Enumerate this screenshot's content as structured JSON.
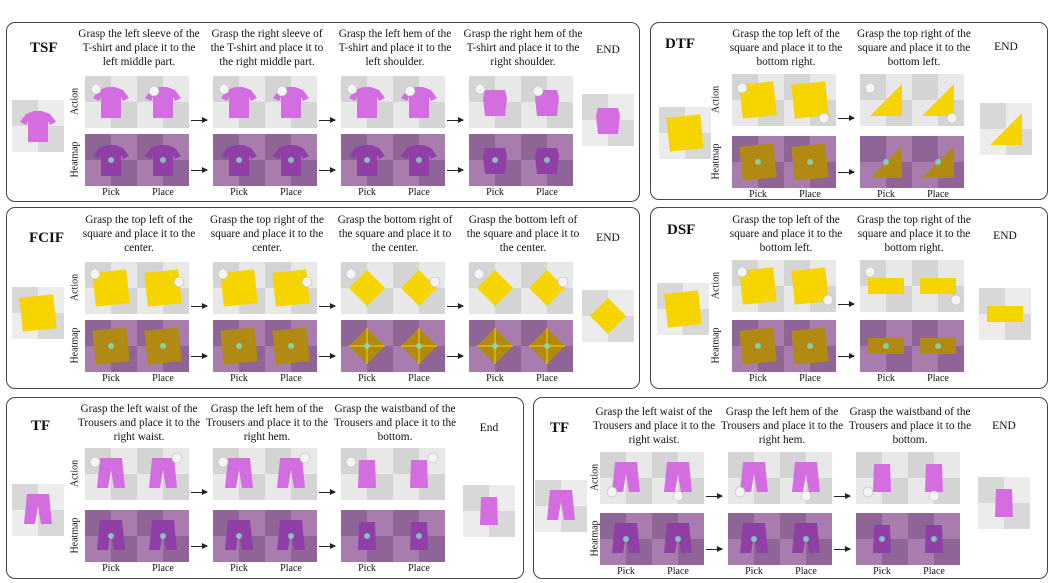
{
  "colors": {
    "cloth_pink": "#d46ee0",
    "cloth_yellow": "#f6d400",
    "heat_cloth": "#8f3fa6",
    "heat_yellow": "#b08a12",
    "panel_border": "#444444"
  },
  "panels": {
    "tsf": {
      "title": "TSF",
      "steps": [
        "Grasp the left sleeve of the T-shirt and place it to the left middle part.",
        "Grasp the right sleeve of the T-shirt and place it to the right middle part.",
        "Grasp the left hem of the T-shirt and place it to the left shoulder.",
        "Grasp the right hem of the T-shirt and place it to the right shoulder."
      ],
      "end": "END"
    },
    "dtf": {
      "title": "DTF",
      "steps": [
        "Grasp the top left of the square and place it to the bottom right.",
        "Grasp the top right of the square and place it to the bottom left."
      ],
      "end": "END"
    },
    "fcif": {
      "title": "FCIF",
      "steps": [
        "Grasp the top left of the square and place it to the center.",
        "Grasp the top right of the square and place it to the center.",
        "Grasp the bottom right of the square and place it to the center.",
        "Grasp the bottom left of the square and place it to the center."
      ],
      "end": "END"
    },
    "dsf": {
      "title": "DSF",
      "steps": [
        "Grasp the top left of the square and place it to the bottom left.",
        "Grasp the top right of the square and place it to the bottom right."
      ],
      "end": "END"
    },
    "tf1": {
      "title": "TF",
      "steps": [
        "Grasp the left waist of the Trousers and place it to the right waist.",
        "Grasp the left hem of the Trousers and place it to the right hem.",
        "Grasp the waistband of the Trousers and place it to the bottom."
      ],
      "end": "End"
    },
    "tf2": {
      "title": "TF",
      "steps": [
        "Grasp the left waist of the Trousers and place it to the right waist.",
        "Grasp the left hem of the Trousers and place it to the right hem.",
        "Grasp the waistband of the Trousers and place it to the bottom."
      ],
      "end": "END"
    }
  },
  "labels": {
    "action": "Action",
    "heatmap": "Heatmap",
    "pick": "Pick",
    "place": "Place"
  }
}
